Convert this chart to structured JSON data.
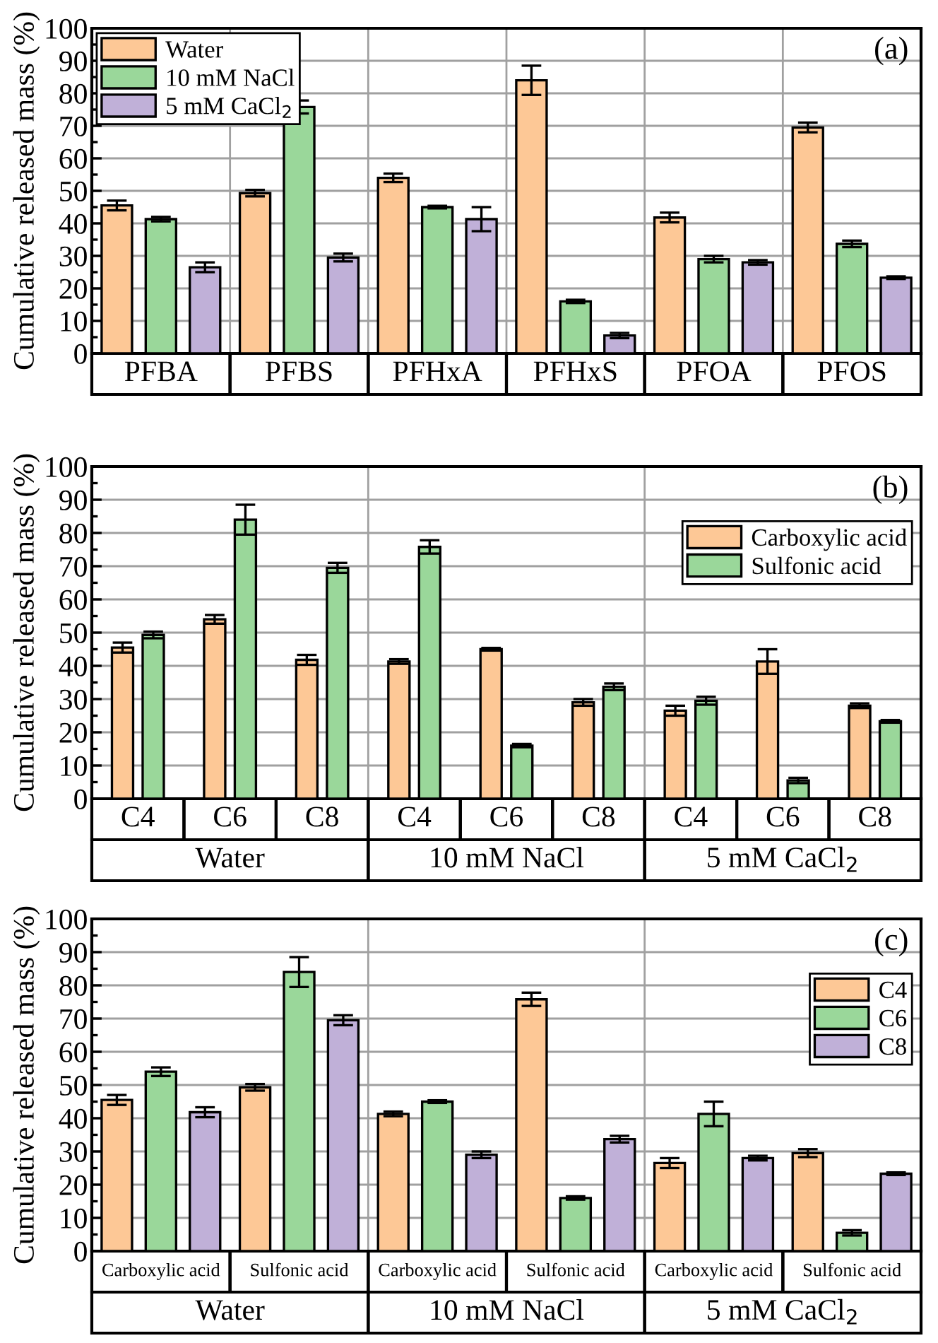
{
  "chart_data": [
    {
      "type": "bar",
      "ylabel": "Cumulative released mass (%)",
      "categories": [
        "PFBA",
        "PFBS",
        "PFHxA",
        "PFHxS",
        "PFOA",
        "PFOS"
      ],
      "series": [
        {
          "name": "Water",
          "color": "#fdc896",
          "values": [
            45.5,
            49.3,
            54,
            84,
            41.8,
            69.5
          ],
          "errors": [
            1.5,
            1,
            1.3,
            4.5,
            1.5,
            1.5
          ]
        },
        {
          "name": "10 mM NaCl",
          "color": "#9ad79a",
          "values": [
            41.3,
            75.8,
            45,
            16,
            29,
            33.7
          ],
          "errors": [
            0.7,
            2,
            0.4,
            0.5,
            1,
            1
          ]
        },
        {
          "name": "5 mM CaCl$_{2}$",
          "color": "#c0b0d8",
          "values": [
            26.5,
            29.5,
            41.3,
            5.5,
            28,
            23.3
          ],
          "errors": [
            1.5,
            1.2,
            3.7,
            0.8,
            0.7,
            0.4
          ]
        }
      ],
      "ylim": [
        0,
        100
      ],
      "yticks": [
        0,
        10,
        20,
        30,
        40,
        50,
        60,
        70,
        80,
        90,
        100
      ],
      "grid": true,
      "legend": "top left",
      "annotations": [
        "(a)"
      ]
    },
    {
      "type": "bar",
      "ylabel": "Cumulative released mass (%)",
      "categories": [
        "C4",
        "C6",
        "C8",
        "C4",
        "C6",
        "C8",
        "C4",
        "C6",
        "C8"
      ],
      "series": [
        {
          "name": "Carboxylic acid",
          "color": "#fdc896",
          "values": [
            45.5,
            54,
            41.8,
            41.3,
            45,
            29,
            26.5,
            41.3,
            28
          ],
          "errors": [
            1.5,
            1.3,
            1.5,
            0.7,
            0.4,
            1,
            1.5,
            3.7,
            0.7
          ]
        },
        {
          "name": "Sulfonic acid",
          "color": "#9ad79a",
          "values": [
            49.3,
            84,
            69.5,
            75.8,
            16,
            33.7,
            29.5,
            5.5,
            23.3
          ],
          "errors": [
            1,
            4.5,
            1.5,
            2,
            0.5,
            1,
            1.2,
            0.8,
            0.4
          ]
        }
      ],
      "ylim": [
        0,
        100
      ],
      "yticks": [
        0,
        10,
        20,
        30,
        40,
        50,
        60,
        70,
        80,
        90,
        100
      ],
      "grid": true,
      "legend": "top right",
      "annotations": [
        "(b)",
        "Water",
        "10 mM NaCl",
        "5 mM CaCl$_{2}$"
      ]
    },
    {
      "type": "bar",
      "ylabel": "Cumulative released mass (%)",
      "categories": [
        "Carboxylic acid",
        "Sulfonic acid",
        "Carboxylic acid",
        "Sulfonic acid",
        "Carboxylic acid",
        "Sulfonic acid"
      ],
      "series": [
        {
          "name": "C4",
          "color": "#fdc896",
          "values": [
            45.5,
            49.3,
            41.3,
            75.8,
            26.5,
            29.5
          ],
          "errors": [
            1.5,
            1,
            0.7,
            2,
            1.5,
            1.2
          ]
        },
        {
          "name": "C6",
          "color": "#9ad79a",
          "values": [
            54,
            84,
            45,
            16,
            41.3,
            5.5
          ],
          "errors": [
            1.3,
            4.5,
            0.4,
            0.5,
            3.7,
            0.8
          ]
        },
        {
          "name": "C8",
          "color": "#c0b0d8",
          "values": [
            41.8,
            69.5,
            29,
            33.7,
            28,
            23.3
          ],
          "errors": [
            1.5,
            1.5,
            1,
            1,
            0.7,
            0.4
          ]
        }
      ],
      "ylim": [
        0,
        100
      ],
      "yticks": [
        0,
        10,
        20,
        30,
        40,
        50,
        60,
        70,
        80,
        90,
        100
      ],
      "grid": true,
      "legend": "top right",
      "annotations": [
        "(c)",
        "Water",
        "10 mM NaCl",
        "5 mM CaCl$_{2}$"
      ]
    }
  ]
}
